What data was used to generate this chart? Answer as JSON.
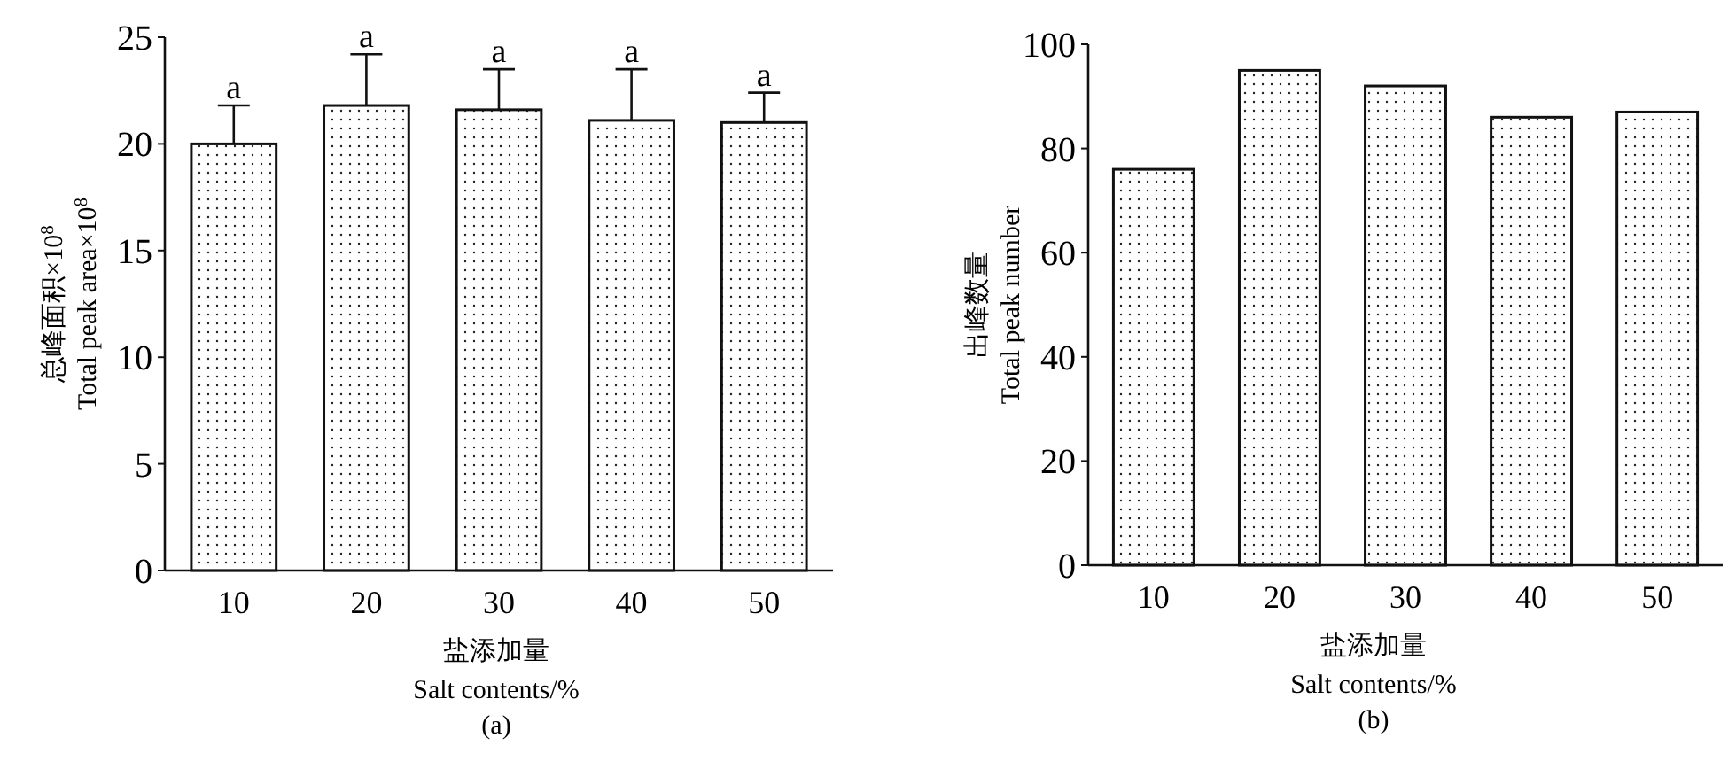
{
  "chart_data": [
    {
      "type": "bar",
      "categories": [
        "10",
        "20",
        "30",
        "40",
        "50"
      ],
      "values": [
        20.0,
        21.8,
        21.6,
        21.1,
        21.0
      ],
      "errors": [
        [
          20.0,
          21.8
        ],
        [
          21.8,
          24.2
        ],
        [
          21.6,
          23.5
        ],
        [
          21.1,
          23.5
        ],
        [
          21.0,
          22.4
        ]
      ],
      "color": "#ffffff",
      "ylim": [
        0,
        25
      ],
      "yticks": [
        0,
        5,
        10,
        15,
        20,
        25
      ],
      "xlabel": "盐添加量\nSalt contents/%",
      "ylabel": "总峰面积×10$^{8}$\nTotal peak area×10$^{8}$",
      "annotations": [
        {
          "text": "a",
          "x": "10",
          "y": 21.8
        },
        {
          "text": "a",
          "x": "20",
          "y": 24.2
        },
        {
          "text": "a",
          "x": "30",
          "y": 23.5
        },
        {
          "text": "a",
          "x": "40",
          "y": 23.5
        },
        {
          "text": "a",
          "x": "50",
          "y": 22.4
        },
        "(a)"
      ]
    },
    {
      "type": "bar",
      "categories": [
        "10",
        "20",
        "30",
        "40",
        "50"
      ],
      "values": [
        76,
        95,
        92,
        86,
        87
      ],
      "color": "#ffffff",
      "ylim": [
        0,
        100
      ],
      "yticks": [
        0,
        20,
        40,
        60,
        80,
        100
      ],
      "xlabel": "盐添加量\nSalt contents/%",
      "ylabel": "出峰数量\nTotal peak number",
      "annotations": [
        "(b)"
      ]
    }
  ]
}
